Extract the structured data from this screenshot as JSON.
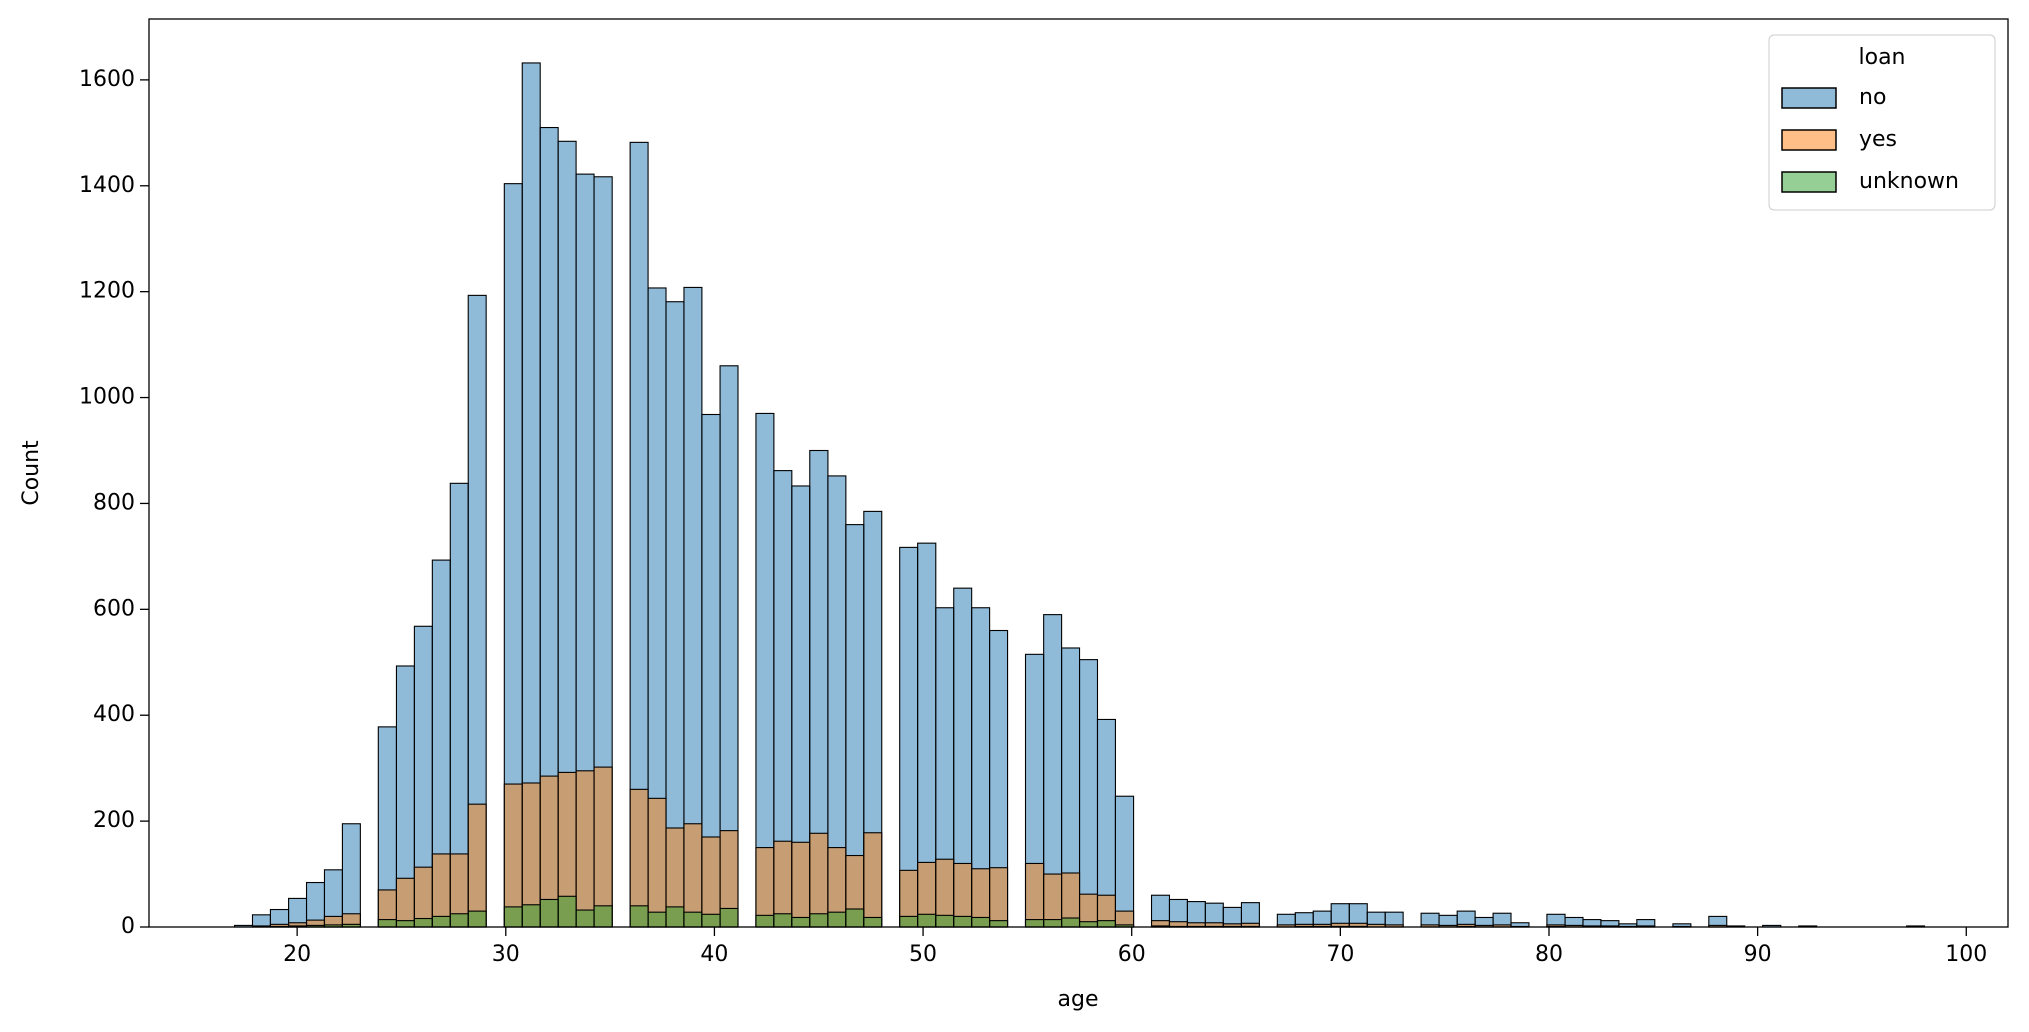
{
  "chart_data": {
    "type": "histogram",
    "xlabel": "age",
    "ylabel": "Count",
    "legend_title": "loan",
    "legend_loc": "upper right",
    "grid": false,
    "bins": [
      17,
      17.86,
      18.72,
      19.59,
      20.45,
      21.31,
      22.17,
      23.03,
      23.89,
      24.76,
      25.62,
      26.48,
      27.34,
      28.2,
      29.06,
      29.93,
      30.79,
      31.65,
      32.51,
      33.37,
      34.23,
      35.1,
      35.96,
      36.82,
      37.68,
      38.54,
      39.4,
      40.27,
      41.13,
      41.99,
      42.85,
      43.71,
      44.57,
      45.44,
      46.3,
      47.16,
      48.02,
      48.88,
      49.74,
      50.61,
      51.47,
      52.33,
      53.19,
      54.05,
      54.91,
      55.78,
      56.64,
      57.5,
      58.36,
      59.22,
      60.09,
      60.95,
      61.81,
      62.67,
      63.53,
      64.39,
      65.26,
      66.12,
      66.98,
      67.84,
      68.7,
      69.56,
      70.43,
      71.29,
      72.15,
      73.01,
      73.87,
      74.73,
      75.6,
      76.46,
      77.32,
      78.18,
      79.04,
      79.9,
      80.77,
      81.63,
      82.49,
      83.35,
      84.21,
      85.07,
      85.94,
      86.8,
      87.66,
      88.52,
      89.38,
      90.24,
      91.11,
      91.97,
      92.83,
      93.69,
      94.55,
      95.41,
      96.28,
      97.14,
      98
    ],
    "series": [
      {
        "name": "no",
        "color": "#1f77b4",
        "values": [
          3,
          23,
          33,
          54,
          84,
          108,
          195,
          0,
          378,
          493,
          568,
          693,
          838,
          1193,
          0,
          1404,
          1632,
          1510,
          1484,
          1422,
          1417,
          0,
          1482,
          1207,
          1181,
          1208,
          968,
          1060,
          0,
          970,
          862,
          833,
          900,
          852,
          760,
          785,
          0,
          717,
          725,
          603,
          640,
          603,
          560,
          0,
          515,
          590,
          527,
          505,
          392,
          247,
          0,
          60,
          52,
          48,
          45,
          37,
          46,
          0,
          24,
          27,
          30,
          44,
          44,
          28,
          28,
          0,
          26,
          22,
          30,
          18,
          26,
          8,
          0,
          24,
          18,
          14,
          12,
          6,
          14,
          0,
          6,
          0,
          20,
          2,
          0,
          3,
          0,
          2,
          0,
          0,
          0,
          0,
          0,
          2
        ]
      },
      {
        "name": "yes",
        "color": "#ff7f0e",
        "values": [
          0,
          2,
          5,
          8,
          13,
          20,
          25,
          0,
          70,
          92,
          113,
          138,
          138,
          232,
          0,
          270,
          272,
          285,
          292,
          295,
          302,
          0,
          260,
          243,
          187,
          195,
          170,
          182,
          0,
          150,
          162,
          160,
          177,
          150,
          135,
          178,
          0,
          107,
          122,
          128,
          120,
          110,
          112,
          0,
          120,
          100,
          102,
          62,
          60,
          30,
          0,
          12,
          10,
          8,
          8,
          6,
          7,
          0,
          4,
          5,
          5,
          7,
          7,
          5,
          4,
          0,
          4,
          3,
          5,
          3,
          4,
          1,
          0,
          4,
          3,
          2,
          2,
          1,
          2,
          0,
          1,
          0,
          3,
          0,
          0,
          0,
          0,
          0,
          0,
          0,
          0,
          0,
          0,
          0
        ]
      },
      {
        "name": "unknown",
        "color": "#2ca02c",
        "values": [
          0,
          0,
          1,
          2,
          3,
          4,
          5,
          0,
          14,
          12,
          16,
          20,
          25,
          30,
          0,
          38,
          42,
          52,
          58,
          32,
          40,
          0,
          40,
          28,
          38,
          28,
          24,
          35,
          0,
          22,
          25,
          18,
          25,
          28,
          34,
          18,
          0,
          20,
          24,
          22,
          20,
          18,
          12,
          0,
          14,
          14,
          17,
          10,
          12,
          4,
          0,
          2,
          1,
          1,
          1,
          1,
          1,
          0,
          0,
          1,
          1,
          1,
          1,
          0,
          0,
          0,
          0,
          0,
          1,
          0,
          0,
          0,
          0,
          1,
          0,
          0,
          0,
          0,
          0,
          0,
          0,
          0,
          0,
          0,
          0,
          0,
          0,
          0,
          0,
          0,
          0,
          0,
          0,
          0
        ]
      }
    ],
    "xlim": [
      12.9,
      102
    ],
    "xticks": [
      20,
      30,
      40,
      50,
      60,
      70,
      80,
      90,
      100
    ],
    "ylim": [
      0,
      1715
    ],
    "yticks": [
      0,
      200,
      400,
      600,
      800,
      1000,
      1200,
      1400,
      1600
    ]
  }
}
